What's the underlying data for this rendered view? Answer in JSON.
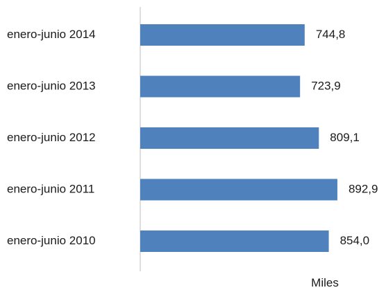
{
  "chart_data": {
    "type": "bar",
    "orientation": "horizontal",
    "categories": [
      "enero-junio 2014",
      "enero-junio 2013",
      "enero-junio 2012",
      "enero-junio 2011",
      "enero-junio 2010"
    ],
    "values": [
      744.8,
      723.9,
      809.1,
      892.9,
      854.0
    ],
    "value_labels": [
      "744,8",
      "723,9",
      "809,1",
      "892,9",
      "854,0"
    ],
    "title": "",
    "xlabel": "Miles",
    "ylabel": "",
    "xlim": [
      0,
      1000
    ],
    "grid": false,
    "legend": "none",
    "bar_color": "#4f81bd"
  }
}
